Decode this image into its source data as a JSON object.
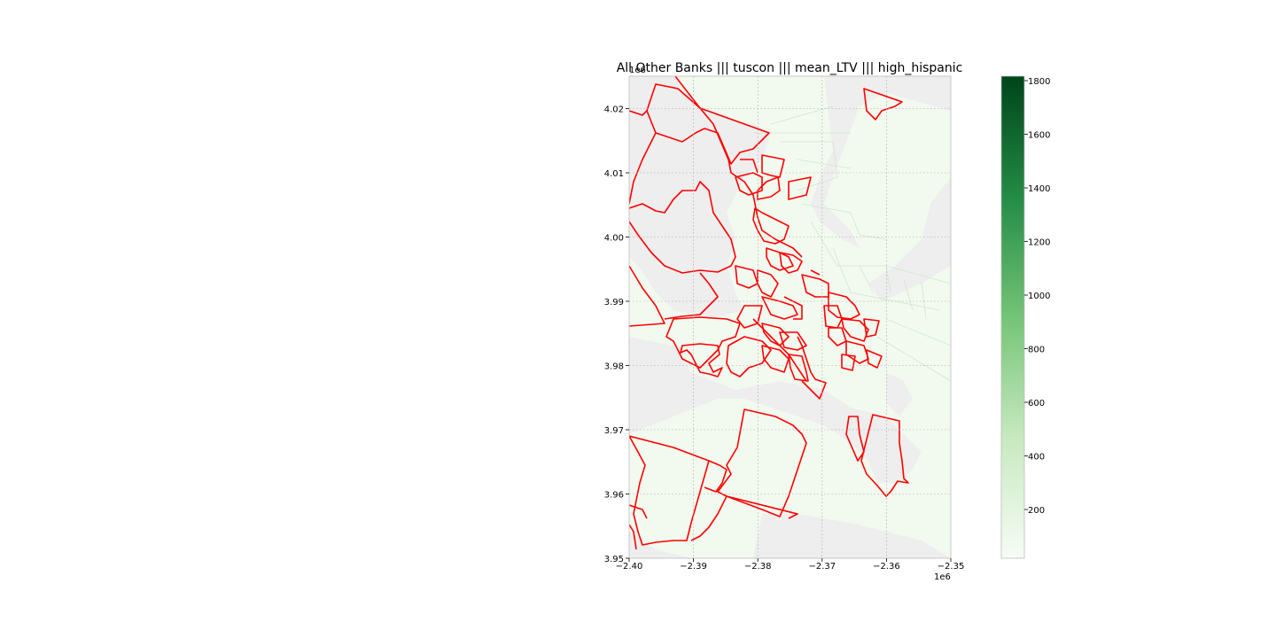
{
  "map": {
    "title": "All Other Banks ||| tuscon ||| mean_LTV ||| high_hispanic",
    "x_offset_label": "1e6",
    "y_offset_label": "1e6",
    "x_axis": {
      "min": -2.4,
      "max": -2.35,
      "ticks": [
        "−2.40",
        "−2.39",
        "−2.38",
        "−2.37",
        "−2.36",
        "−2.35"
      ]
    },
    "y_axis": {
      "min": 3.95,
      "max": 4.025,
      "ticks": [
        "3.95",
        "3.96",
        "3.97",
        "3.98",
        "3.99",
        "4.00",
        "4.01",
        "4.02"
      ]
    },
    "grid": true,
    "highlight_color": "#ff0000",
    "background_land_color": "#eeeeee",
    "tract_fill_color": "#f2faf0",
    "colormap": "Greens"
  },
  "colorbar": {
    "min": 0,
    "max": 1800,
    "ticks": [
      "200",
      "400",
      "600",
      "800",
      "1000",
      "1200",
      "1400",
      "1600",
      "1800"
    ],
    "low_color": "#f7fcf5",
    "high_color": "#00441b"
  }
}
